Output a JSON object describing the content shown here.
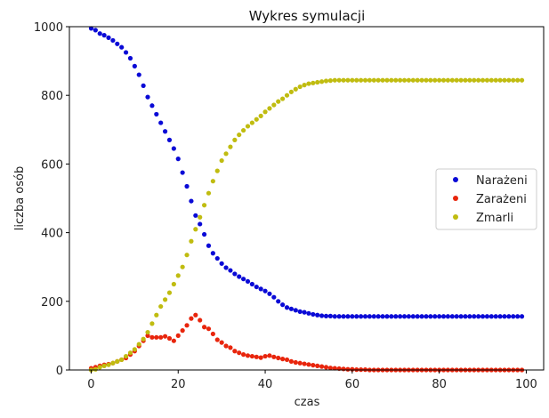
{
  "chart_data": {
    "type": "scatter",
    "title": "Wykres symulacji",
    "xlabel": "czas",
    "ylabel": "liczba osób",
    "xlim": [
      -5,
      104
    ],
    "ylim": [
      0,
      1000
    ],
    "xticks": [
      0,
      20,
      40,
      60,
      80,
      100
    ],
    "yticks": [
      0,
      200,
      400,
      600,
      800,
      1000
    ],
    "grid": false,
    "legend_position": "right",
    "x": [
      0,
      1,
      2,
      3,
      4,
      5,
      6,
      7,
      8,
      9,
      10,
      11,
      12,
      13,
      14,
      15,
      16,
      17,
      18,
      19,
      20,
      21,
      22,
      23,
      24,
      25,
      26,
      27,
      28,
      29,
      30,
      31,
      32,
      33,
      34,
      35,
      36,
      37,
      38,
      39,
      40,
      41,
      42,
      43,
      44,
      45,
      46,
      47,
      48,
      49,
      50,
      51,
      52,
      53,
      54,
      55,
      56,
      57,
      58,
      59,
      60,
      61,
      62,
      63,
      64,
      65,
      66,
      67,
      68,
      69,
      70,
      71,
      72,
      73,
      74,
      75,
      76,
      77,
      78,
      79,
      80,
      81,
      82,
      83,
      84,
      85,
      86,
      87,
      88,
      89,
      90,
      91,
      92,
      93,
      94,
      95,
      96,
      97,
      98,
      99
    ],
    "series": [
      {
        "name": "Narażeni",
        "color": "#0a0ad6",
        "values": [
          995,
          990,
          980,
          975,
          968,
          960,
          950,
          940,
          925,
          908,
          885,
          860,
          828,
          795,
          770,
          745,
          720,
          695,
          670,
          645,
          615,
          575,
          535,
          492,
          450,
          425,
          395,
          362,
          340,
          325,
          310,
          298,
          290,
          280,
          272,
          265,
          258,
          250,
          242,
          236,
          230,
          222,
          212,
          200,
          190,
          182,
          178,
          174,
          170,
          168,
          165,
          162,
          160,
          158,
          157,
          157,
          156,
          156,
          156,
          156,
          156,
          156,
          156,
          156,
          156,
          156,
          156,
          156,
          156,
          156,
          156,
          156,
          156,
          156,
          156,
          156,
          156,
          156,
          156,
          156,
          156,
          156,
          156,
          156,
          156,
          156,
          156,
          156,
          156,
          156,
          156,
          156,
          156,
          156,
          156,
          156,
          156,
          156,
          156,
          156
        ]
      },
      {
        "name": "Zarażeni",
        "color": "#e8250c",
        "values": [
          5,
          8,
          12,
          15,
          17,
          20,
          25,
          30,
          35,
          45,
          55,
          70,
          85,
          100,
          95,
          95,
          95,
          98,
          92,
          85,
          100,
          115,
          130,
          150,
          160,
          145,
          125,
          120,
          105,
          88,
          80,
          70,
          65,
          55,
          50,
          45,
          42,
          40,
          38,
          36,
          40,
          42,
          38,
          35,
          32,
          30,
          25,
          22,
          20,
          18,
          16,
          14,
          12,
          10,
          8,
          6,
          5,
          4,
          3,
          2,
          2,
          1,
          1,
          1,
          0,
          0,
          0,
          0,
          0,
          0,
          0,
          0,
          0,
          0,
          0,
          0,
          0,
          0,
          0,
          0,
          0,
          0,
          0,
          0,
          0,
          0,
          0,
          0,
          0,
          0,
          0,
          0,
          0,
          0,
          0,
          0,
          0,
          0,
          0,
          0
        ]
      },
      {
        "name": "Zmarli",
        "color": "#c0bc10",
        "values": [
          0,
          2,
          8,
          12,
          15,
          20,
          25,
          30,
          40,
          50,
          60,
          75,
          90,
          110,
          135,
          160,
          185,
          205,
          225,
          250,
          275,
          300,
          335,
          375,
          410,
          445,
          480,
          515,
          550,
          580,
          610,
          630,
          650,
          670,
          685,
          698,
          710,
          720,
          730,
          740,
          752,
          762,
          772,
          782,
          790,
          800,
          810,
          818,
          825,
          830,
          834,
          836,
          838,
          840,
          842,
          843,
          844,
          844,
          844,
          844,
          844,
          844,
          844,
          844,
          844,
          844,
          844,
          844,
          844,
          844,
          844,
          844,
          844,
          844,
          844,
          844,
          844,
          844,
          844,
          844,
          844,
          844,
          844,
          844,
          844,
          844,
          844,
          844,
          844,
          844,
          844,
          844,
          844,
          844,
          844,
          844,
          844,
          844,
          844,
          844
        ]
      }
    ]
  }
}
